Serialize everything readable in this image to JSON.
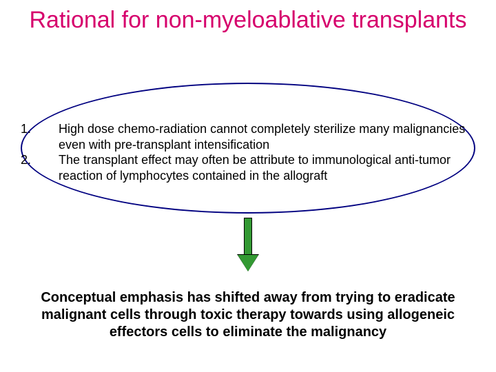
{
  "title": {
    "text": "Rational for non-myeloablative transplants",
    "color": "#d6006c",
    "fontsize": 34
  },
  "ellipse": {
    "border_color": "#000080",
    "border_width": 2
  },
  "list": {
    "fontsize": 18,
    "color": "#000000",
    "items": [
      {
        "num": "1.",
        "text": "High dose chemo-radiation cannot completely sterilize many malignancies even with pre-transplant intensification"
      },
      {
        "num": "2.",
        "text": "The transplant effect may often be attribute to immunological anti-tumor reaction of lymphocytes contained in the allograft"
      }
    ]
  },
  "arrow": {
    "fill": "#339933",
    "border": "#000000"
  },
  "conclusion": {
    "text": "Conceptual emphasis has shifted away from trying to eradicate malignant cells through toxic therapy towards using allogeneic effectors cells to eliminate the malignancy",
    "color": "#000000",
    "fontsize": 20,
    "weight": "bold"
  },
  "background_color": "#ffffff"
}
